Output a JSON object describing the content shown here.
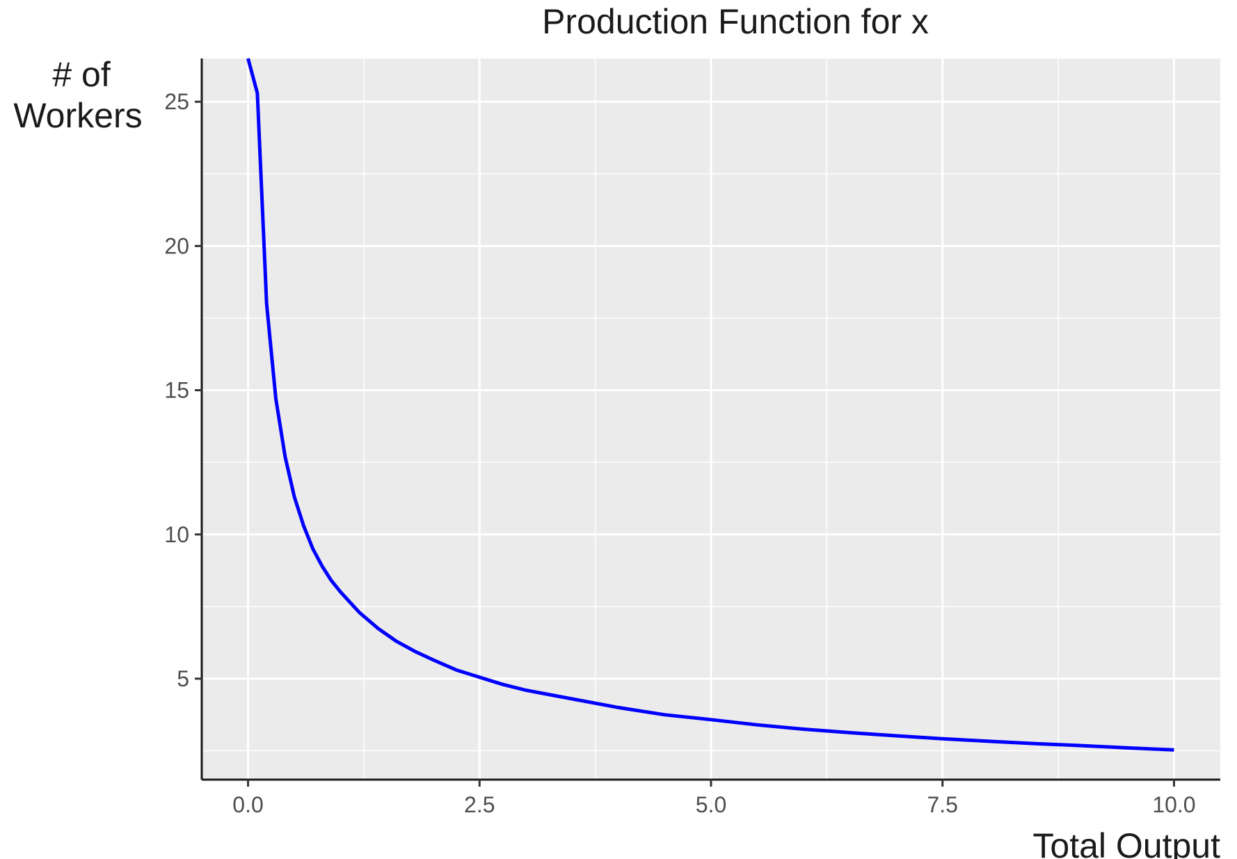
{
  "chart_data": {
    "type": "line",
    "title": "Production Function for x",
    "xlabel": "Total Output",
    "ylabel_lines": [
      "# of",
      "Workers"
    ],
    "xlim": [
      -0.5,
      10.5
    ],
    "ylim": [
      1.5,
      26.5
    ],
    "x_ticks": [
      0,
      2.5,
      5,
      7.5,
      10
    ],
    "x_tick_labels": [
      "0.0",
      "2.5",
      "5.0",
      "7.5",
      "10.0"
    ],
    "y_ticks": [
      5,
      10,
      15,
      20,
      25
    ],
    "y_tick_labels": [
      "5",
      "10",
      "15",
      "20",
      "25"
    ],
    "grid": true,
    "series": [
      {
        "color": "#0000ff",
        "x": [
          0,
          0.1,
          0.2,
          0.3,
          0.4,
          0.5,
          0.6,
          0.7,
          0.8,
          0.9,
          1.0,
          1.2,
          1.4,
          1.6,
          1.8,
          2.0,
          2.25,
          2.5,
          2.75,
          3.0,
          3.5,
          4.0,
          4.5,
          5.0,
          5.5,
          6.0,
          6.5,
          7.0,
          7.5,
          8.0,
          8.5,
          9.0,
          9.5,
          10.0
        ],
        "y": [
          26.5,
          25.3,
          18.0,
          14.7,
          12.7,
          11.3,
          10.3,
          9.5,
          8.9,
          8.4,
          8.0,
          7.3,
          6.75,
          6.3,
          5.95,
          5.65,
          5.3,
          5.05,
          4.8,
          4.6,
          4.3,
          4.0,
          3.75,
          3.58,
          3.4,
          3.25,
          3.13,
          3.02,
          2.92,
          2.83,
          2.75,
          2.68,
          2.6,
          2.53
        ]
      }
    ]
  }
}
